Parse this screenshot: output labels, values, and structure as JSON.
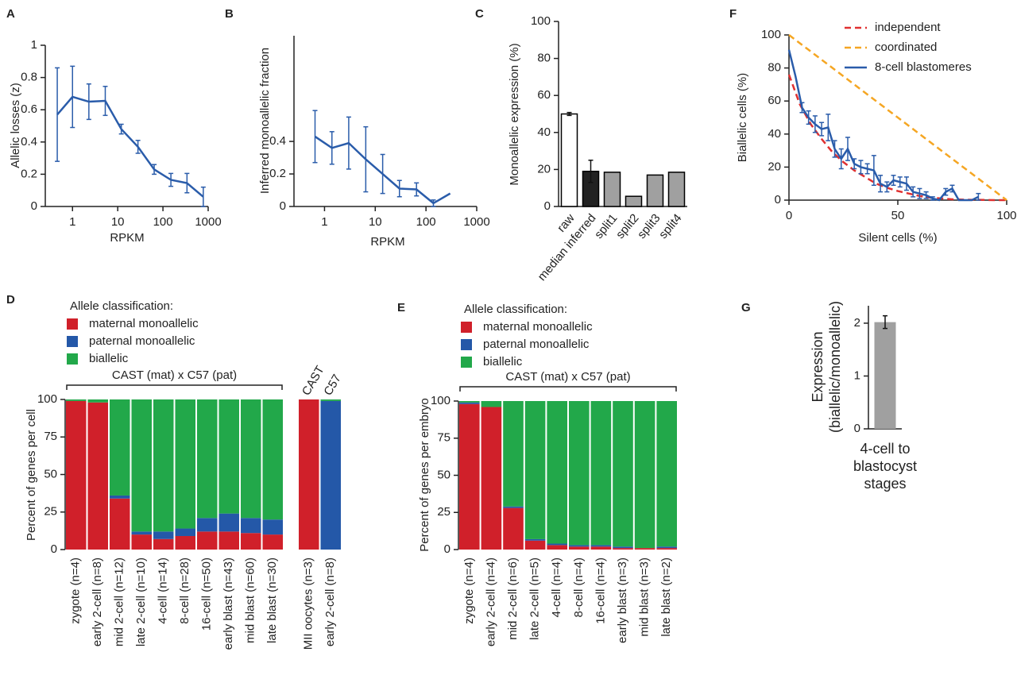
{
  "chart_data": [
    {
      "type": "line",
      "panel_label": "A",
      "xlabel": "RPKM",
      "ylabel": "Allelic losses (z)",
      "xscale": "log",
      "xlim": [
        0.25,
        1000
      ],
      "xticks": [
        1,
        10,
        100,
        1000
      ],
      "ylim": [
        0,
        1
      ],
      "yticks": [
        0,
        0.2,
        0.4,
        0.6,
        0.8,
        1
      ],
      "x": [
        0.46,
        1,
        2.3,
        5.3,
        12,
        28,
        64,
        150,
        340,
        780
      ],
      "series": [
        {
          "color": "#2a5caa",
          "values": [
            0.57,
            0.68,
            0.65,
            0.655,
            0.48,
            0.37,
            0.23,
            0.165,
            0.145,
            0.06
          ],
          "errors": [
            0.29,
            0.19,
            0.11,
            0.09,
            0.03,
            0.04,
            0.03,
            0.04,
            0.06,
            0.06
          ]
        }
      ]
    },
    {
      "type": "line",
      "panel_label": "B",
      "xlabel": "RPKM",
      "ylabel": "Inferred monoallelic fraction",
      "xscale": "log",
      "xlim": [
        0.25,
        1000
      ],
      "xticks": [
        1,
        10,
        100,
        1000
      ],
      "ylim": [
        0,
        1.05
      ],
      "yticks": [
        0,
        0.2,
        0.4
      ],
      "x": [
        0.65,
        1.4,
        3,
        6.5,
        14,
        30,
        65,
        140,
        300
      ],
      "series": [
        {
          "color": "#2a5caa",
          "values": [
            0.43,
            0.36,
            0.39,
            0.29,
            0.2,
            0.11,
            0.105,
            0.02,
            0.08
          ],
          "errors": [
            0.16,
            0.1,
            0.16,
            0.2,
            0.12,
            0.05,
            0.04,
            0.02,
            null
          ]
        }
      ]
    },
    {
      "type": "bar",
      "panel_label": "C",
      "ylabel": "Monoallelic expression (%)",
      "categories": [
        "raw",
        "median inferred",
        "split1",
        "split2",
        "split3",
        "split4"
      ],
      "values": [
        50,
        19,
        18.5,
        5.5,
        17,
        18.5
      ],
      "errors": [
        0.8,
        6,
        null,
        null,
        null,
        null
      ],
      "colors": [
        "#ffffff",
        "#222222",
        "#a0a0a0",
        "#a0a0a0",
        "#a0a0a0",
        "#a0a0a0"
      ],
      "edgecolor": "#000000",
      "ylim": [
        0,
        100
      ],
      "yticks": [
        0,
        20,
        40,
        60,
        80,
        100
      ]
    },
    {
      "type": "line",
      "panel_label": "F",
      "xlabel": "Silent cells (%)",
      "ylabel": "Biallelic cells (%)",
      "xlim": [
        0,
        100
      ],
      "xticks": [
        0,
        50,
        100
      ],
      "ylim": [
        0,
        100
      ],
      "yticks": [
        0,
        20,
        40,
        60,
        80,
        100
      ],
      "legend": "upper right",
      "series": [
        {
          "name": "independent",
          "color": "#e03030",
          "dash": true,
          "x": [
            0,
            5,
            10,
            15,
            20,
            25,
            30,
            35,
            40,
            45,
            50,
            55,
            60,
            65,
            70,
            75,
            80,
            85,
            90,
            95,
            100
          ],
          "values": [
            76,
            58,
            46,
            37,
            29,
            23,
            18,
            14,
            10,
            7.5,
            5.5,
            4,
            2.5,
            1.5,
            1,
            0.5,
            0.3,
            0.2,
            0.1,
            0,
            0
          ]
        },
        {
          "name": "coordinated",
          "color": "#f5a623",
          "dash": true,
          "x": [
            0,
            100
          ],
          "values": [
            100,
            0
          ]
        },
        {
          "name": "8-cell blastomeres",
          "color": "#2a5caa",
          "x": [
            0,
            3,
            6,
            9,
            12,
            15,
            18,
            21,
            24,
            27,
            30,
            33,
            36,
            39,
            42,
            45,
            48,
            51,
            54,
            57,
            60,
            63,
            66,
            69,
            72,
            75,
            78,
            81,
            84,
            87
          ],
          "values": [
            91,
            75,
            56,
            50,
            46,
            43,
            44,
            31,
            25,
            31,
            22,
            20,
            19,
            18,
            10,
            8,
            12,
            11,
            10,
            5,
            4,
            3,
            1,
            0,
            5,
            7,
            0,
            0,
            0,
            2
          ],
          "errors": [
            null,
            null,
            3,
            4,
            5,
            4,
            8,
            5,
            6,
            7,
            3,
            4,
            3,
            9,
            5,
            3,
            3,
            3,
            4,
            3,
            3,
            2,
            1,
            null,
            2,
            2,
            null,
            null,
            null,
            2
          ]
        }
      ]
    },
    {
      "type": "stacked_bar",
      "panel_label": "D",
      "ylabel": "Percent of genes per cell",
      "legend": "top",
      "legend_title": "Allele classification:",
      "bracket": "CAST (mat) x C57 (pat)",
      "categories": [
        "zygote (n=4)",
        "early 2-cell (n=8)",
        "mid 2-cell (n=12)",
        "late 2-cell (n=10)",
        "4-cell (n=14)",
        "8-cell (n=28)",
        "16-cell (n=50)",
        "early blast (n=43)",
        "mid blast (n=60)",
        "late blast (n=30)"
      ],
      "ylim": [
        0,
        100
      ],
      "yticks": [
        0,
        25,
        50,
        75,
        100
      ],
      "series": [
        {
          "name": "maternal monoallelic",
          "color": "#d0202a",
          "values": [
            99,
            98,
            34,
            10,
            7,
            9,
            12,
            12,
            11,
            10
          ]
        },
        {
          "name": "paternal monoallelic",
          "color": "#2458a8",
          "values": [
            0,
            0,
            2,
            2,
            5,
            5,
            9,
            12,
            10,
            10
          ]
        },
        {
          "name": "biallelic",
          "color": "#22a84a",
          "values": [
            1,
            2,
            64,
            88,
            88,
            86,
            79,
            76,
            79,
            80
          ]
        }
      ]
    },
    {
      "type": "stacked_bar",
      "column_labels": [
        "CAST",
        "C57"
      ],
      "categories": [
        "MII oocytes (n=3)",
        "early 2-cell (n=8)"
      ],
      "ylim": [
        0,
        100
      ],
      "series": [
        {
          "color": "#d0202a",
          "values": [
            100,
            0
          ]
        },
        {
          "color": "#2458a8",
          "values": [
            0,
            99
          ]
        },
        {
          "color": "#22a84a",
          "values": [
            0,
            1
          ]
        }
      ]
    },
    {
      "type": "stacked_bar",
      "panel_label": "E",
      "ylabel": "Percent of genes per embryo",
      "legend": "top",
      "legend_title": "Allele classification:",
      "bracket": "CAST (mat) x C57 (pat)",
      "categories": [
        "zygote (n=4)",
        "early 2-cell (n=4)",
        "mid 2-cell (n=6)",
        "late 2-cell (n=5)",
        "4-cell (n=4)",
        "8-cell (n=4)",
        "16-cell (n=4)",
        "early blast (n=3)",
        "mid blast (n=3)",
        "late blast (n=2)"
      ],
      "ylim": [
        0,
        100
      ],
      "yticks": [
        0,
        25,
        50,
        75,
        100
      ],
      "series": [
        {
          "name": "maternal monoallelic",
          "color": "#d0202a",
          "values": [
            98,
            96,
            28,
            6,
            3,
            2,
            2,
            1,
            1,
            1
          ]
        },
        {
          "name": "paternal monoallelic",
          "color": "#2458a8",
          "values": [
            1,
            0,
            1,
            1,
            1,
            1,
            1,
            1,
            0,
            1
          ]
        },
        {
          "name": "biallelic",
          "color": "#22a84a",
          "values": [
            1,
            4,
            71,
            93,
            96,
            97,
            97,
            98,
            99,
            98
          ]
        }
      ]
    },
    {
      "type": "bar",
      "panel_label": "G",
      "ylabel": "Expression\n(biallelic/monoallelic)",
      "categories": [
        "4-cell to\nblastocyst\nstages"
      ],
      "values": [
        2.02
      ],
      "errors": [
        0.12
      ],
      "colors": [
        "#a0a0a0"
      ],
      "ylim": [
        0,
        2.33
      ],
      "yticks": [
        0,
        1,
        2
      ]
    }
  ]
}
